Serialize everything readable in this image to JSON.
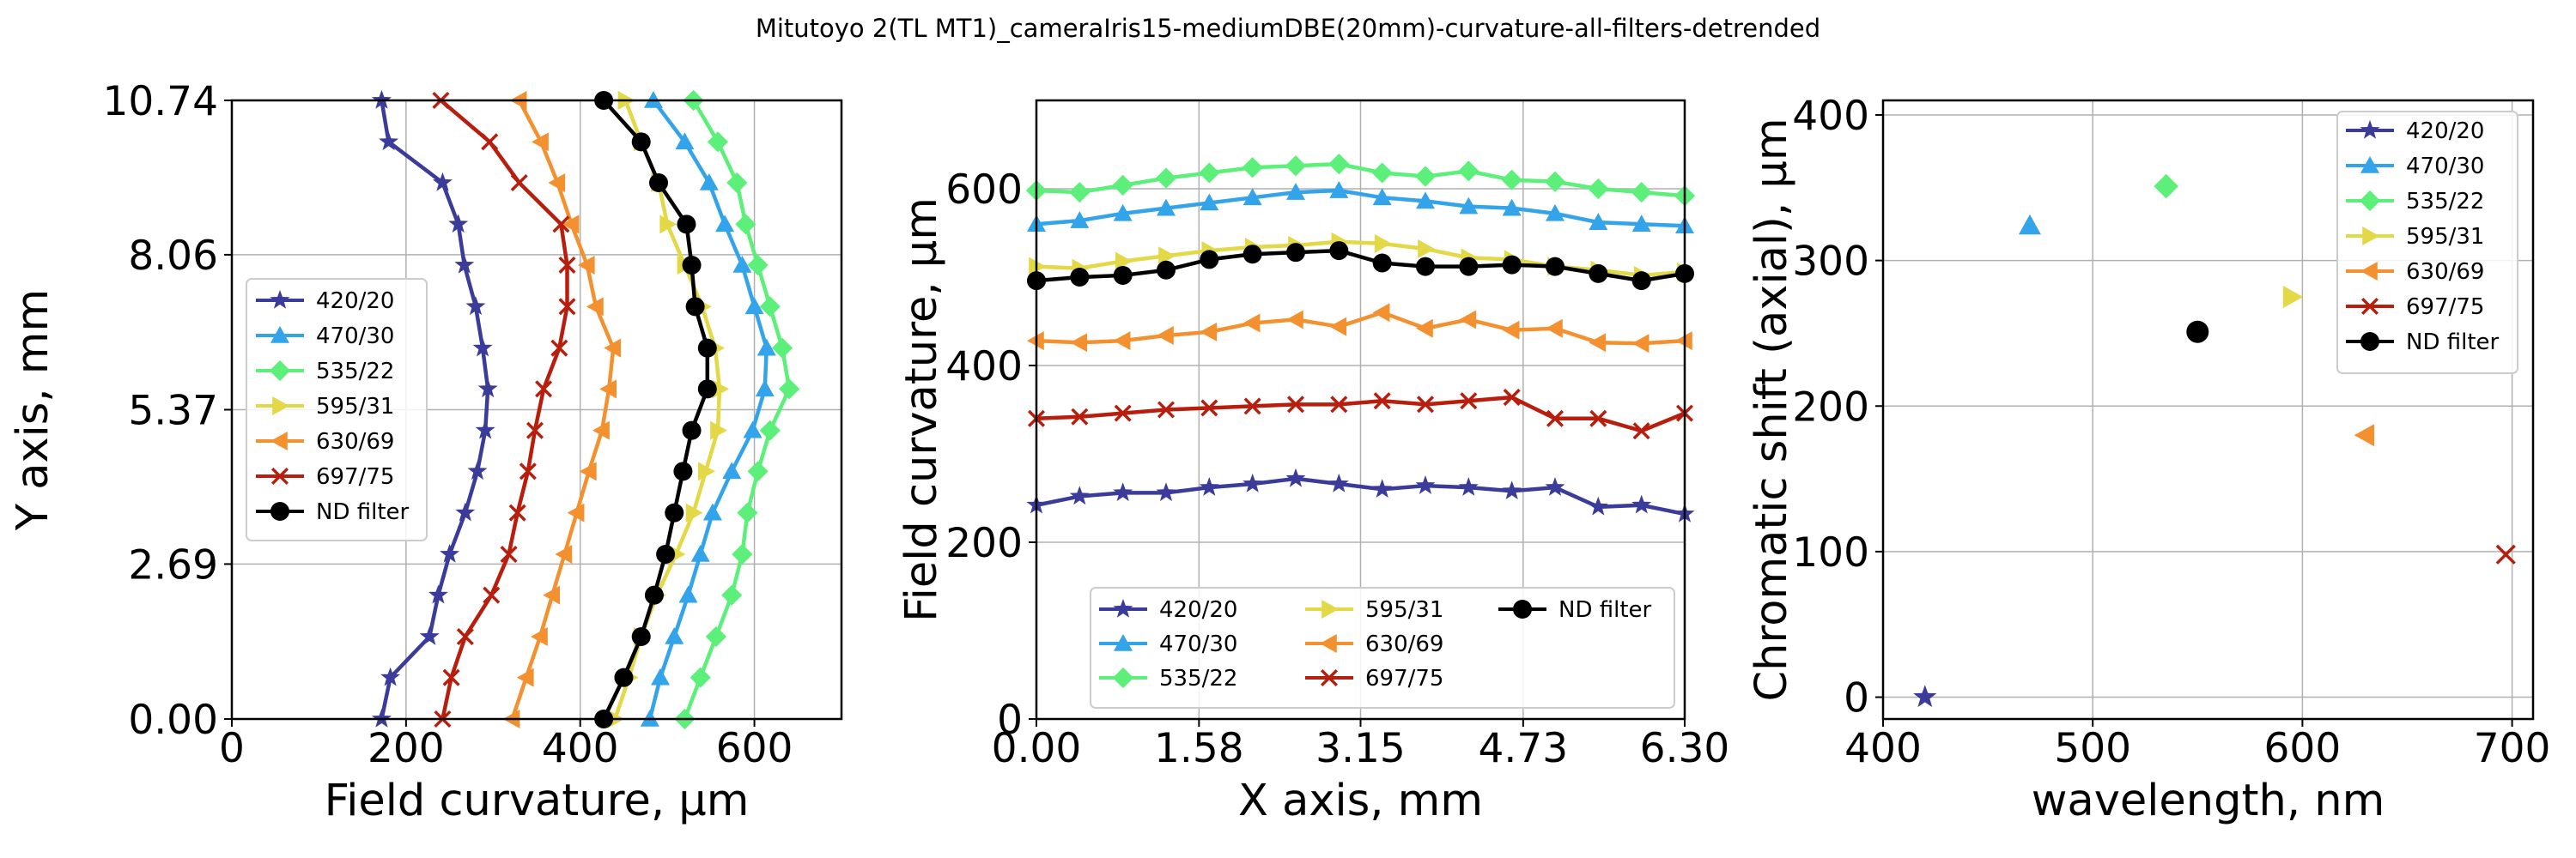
{
  "figure_title": "Mitutoyo 2(TL MT1)_cameraIris15-mediumDBE(20mm)-curvature-all-filters-detrended",
  "series_styles": [
    {
      "name": "420/20",
      "color": "#3b3b9a",
      "marker": "star"
    },
    {
      "name": "470/30",
      "color": "#33a3ea",
      "marker": "triangle-up"
    },
    {
      "name": "535/22",
      "color": "#5cf07a",
      "marker": "diamond"
    },
    {
      "name": "595/31",
      "color": "#e3d846",
      "marker": "triangle-right"
    },
    {
      "name": "630/69",
      "color": "#f39131",
      "marker": "triangle-left"
    },
    {
      "name": "697/75",
      "color": "#b81e0e",
      "marker": "x"
    },
    {
      "name": "ND filter",
      "color": "#000000",
      "marker": "circle"
    }
  ],
  "chart_data": [
    {
      "type": "line",
      "xlabel": "Field curvature, µm",
      "ylabel": "Y axis, mm",
      "xlim": [
        0,
        700
      ],
      "ylim": [
        0,
        10.74
      ],
      "xticks": [
        0,
        200,
        400,
        600
      ],
      "yticks": [
        "0.00",
        "2.69",
        "5.37",
        "8.06",
        "10.74"
      ],
      "grid": true,
      "legend_position": "center-left",
      "y": [
        0.0,
        0.72,
        1.43,
        2.15,
        2.86,
        3.58,
        4.3,
        5.01,
        5.73,
        6.44,
        7.16,
        7.88,
        8.59,
        9.31,
        10.02,
        10.74
      ],
      "series": [
        {
          "name": "420/20",
          "values": [
            172,
            182,
            227,
            237,
            250,
            268,
            282,
            291,
            294,
            288,
            280,
            267,
            260,
            242,
            180,
            172
          ]
        },
        {
          "name": "470/30",
          "values": [
            480,
            492,
            508,
            524,
            538,
            552,
            574,
            598,
            612,
            614,
            600,
            586,
            566,
            548,
            520,
            484
          ]
        },
        {
          "name": "535/22",
          "values": [
            520,
            538,
            556,
            574,
            586,
            592,
            604,
            618,
            640,
            632,
            618,
            604,
            590,
            580,
            558,
            530
          ]
        },
        {
          "name": "595/31",
          "values": [
            440,
            456,
            470,
            488,
            510,
            530,
            544,
            558,
            560,
            555,
            540,
            520,
            500,
            490,
            470,
            452
          ]
        },
        {
          "name": "630/69",
          "values": [
            322,
            338,
            354,
            368,
            382,
            396,
            410,
            425,
            433,
            438,
            418,
            408,
            390,
            374,
            355,
            330
          ]
        },
        {
          "name": "697/75",
          "values": [
            242,
            252,
            268,
            298,
            318,
            328,
            340,
            348,
            358,
            376,
            385,
            385,
            378,
            330,
            296,
            240
          ]
        },
        {
          "name": "ND filter",
          "values": [
            427,
            450,
            470,
            485,
            498,
            508,
            518,
            528,
            546,
            546,
            532,
            528,
            522,
            490,
            470,
            427
          ]
        }
      ]
    },
    {
      "type": "line",
      "xlabel": "X axis, mm",
      "ylabel": "Field curvature, µm",
      "xlim": [
        0,
        6.3
      ],
      "ylim": [
        0,
        700
      ],
      "xticks": [
        "0.00",
        "1.58",
        "3.15",
        "4.73",
        "6.30"
      ],
      "yticks": [
        0,
        200,
        400,
        600
      ],
      "grid": true,
      "legend_position": "lower-center",
      "x": [
        0.0,
        0.42,
        0.84,
        1.26,
        1.68,
        2.1,
        2.52,
        2.94,
        3.36,
        3.78,
        4.2,
        4.62,
        5.04,
        5.46,
        5.88,
        6.3
      ],
      "series": [
        {
          "name": "420/20",
          "values": [
            242,
            252,
            256,
            256,
            262,
            266,
            272,
            266,
            260,
            264,
            262,
            258,
            262,
            240,
            242,
            232
          ]
        },
        {
          "name": "470/30",
          "values": [
            560,
            564,
            572,
            578,
            584,
            590,
            596,
            598,
            590,
            586,
            580,
            578,
            572,
            562,
            560,
            558
          ]
        },
        {
          "name": "535/22",
          "values": [
            598,
            596,
            604,
            612,
            618,
            624,
            626,
            628,
            618,
            614,
            620,
            610,
            608,
            600,
            596,
            592
          ]
        },
        {
          "name": "595/31",
          "values": [
            512,
            510,
            518,
            524,
            530,
            534,
            536,
            540,
            538,
            532,
            522,
            520,
            512,
            508,
            502,
            506
          ]
        },
        {
          "name": "630/69",
          "values": [
            428,
            426,
            428,
            434,
            438,
            448,
            452,
            444,
            460,
            442,
            452,
            440,
            442,
            426,
            425,
            428
          ]
        },
        {
          "name": "697/75",
          "values": [
            340,
            342,
            346,
            350,
            352,
            354,
            356,
            356,
            360,
            356,
            360,
            364,
            340,
            340,
            326,
            346
          ]
        },
        {
          "name": "ND filter",
          "values": [
            496,
            500,
            502,
            508,
            520,
            526,
            528,
            530,
            516,
            512,
            512,
            514,
            512,
            504,
            496,
            504
          ]
        }
      ]
    },
    {
      "type": "scatter",
      "xlabel": "wavelength, nm",
      "ylabel": "Chromatic shift (axial), µm",
      "xlim": [
        400,
        710
      ],
      "ylim": [
        -15,
        410
      ],
      "xticks": [
        400,
        500,
        600,
        700
      ],
      "yticks": [
        0,
        100,
        200,
        300,
        400
      ],
      "grid": true,
      "legend_position": "top-right",
      "points": [
        {
          "name": "420/20",
          "x": 420,
          "y": 0
        },
        {
          "name": "470/30",
          "x": 470,
          "y": 324
        },
        {
          "name": "535/22",
          "x": 535,
          "y": 351
        },
        {
          "name": "595/31",
          "x": 595,
          "y": 275
        },
        {
          "name": "630/69",
          "x": 630,
          "y": 180
        },
        {
          "name": "697/75",
          "x": 697,
          "y": 98
        },
        {
          "name": "ND filter",
          "x": 550,
          "y": 251
        }
      ]
    }
  ]
}
